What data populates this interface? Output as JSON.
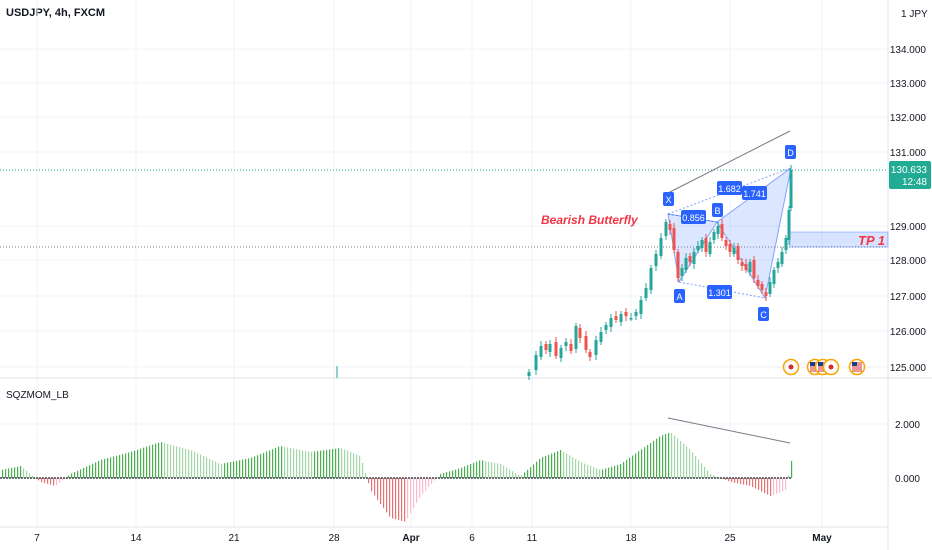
{
  "header": {
    "symbol": "USDJPY, 4h, FXCM",
    "currency": "JPY",
    "currency_prefix": "1"
  },
  "price_axis": {
    "ticks": [
      "134.000",
      "133.000",
      "132.000",
      "131.000",
      "129.000",
      "128.000",
      "127.000",
      "126.000",
      "125.000"
    ],
    "current_price": "130.633",
    "countdown": "12:48",
    "current_color": "#22ab94"
  },
  "pattern": {
    "name": "Bearish Butterfly",
    "points": [
      "X",
      "A",
      "B",
      "C",
      "D"
    ],
    "ratios": [
      "0.856",
      "1.682",
      "1.741",
      "1.301"
    ],
    "target": "TP 1",
    "accent": "#2962ff",
    "text_color": "#f23645"
  },
  "indicator": {
    "name": "SQZMOM_LB",
    "ticks": [
      "2.000",
      "0.000"
    ]
  },
  "time_axis": {
    "labels": [
      "7",
      "14",
      "21",
      "28",
      "Apr",
      "6",
      "11",
      "18",
      "25",
      "May"
    ]
  },
  "colors": {
    "up": "#26a69a",
    "down": "#ef5350",
    "mom_up": "#4caf50",
    "mom_down": "#e57373"
  },
  "event_icons": [
    "japan-flag-icon",
    "us-flag-icon",
    "us-flag-icon",
    "japan-flag-icon",
    "us-flag-icon"
  ]
}
